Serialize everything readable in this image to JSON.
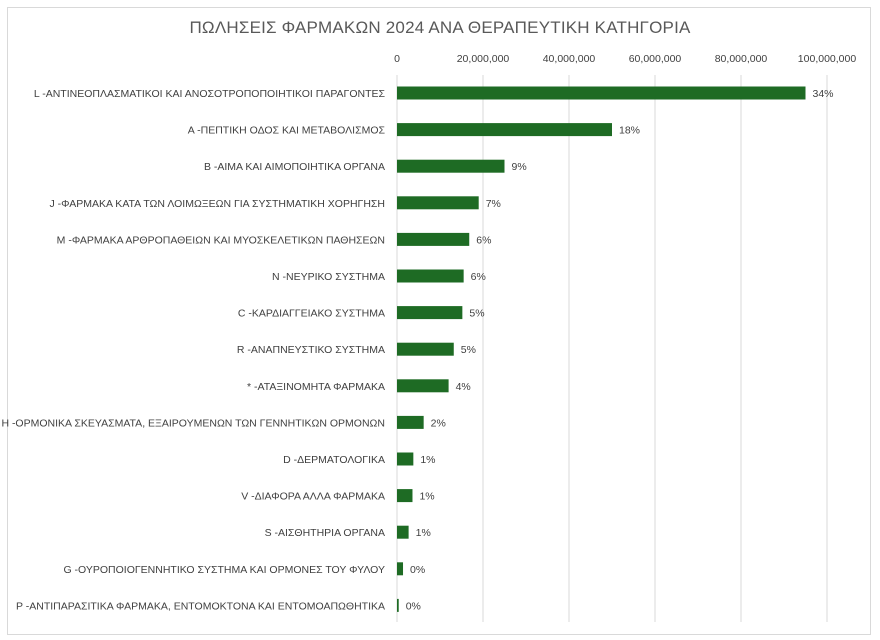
{
  "chart_data": {
    "type": "bar",
    "orientation": "horizontal",
    "title": "ΠΩΛΗΣΕΙΣ ΦΑΡΜΑΚΩΝ 2024 ΑΝΑ ΘΕΡΑΠΕΥΤΙΚΗ ΚΑΤΗΓΟΡΙΑ",
    "xlabel": "",
    "ylabel": "",
    "xlim": [
      0,
      100000000
    ],
    "x_ticks": [
      0,
      20000000,
      40000000,
      60000000,
      80000000,
      100000000
    ],
    "x_tick_labels": [
      "0",
      "20,000,000",
      "40,000,000",
      "60,000,000",
      "80,000,000",
      "100,000,000"
    ],
    "axis_position": "top",
    "grid": true,
    "bar_color": "#1e6b24",
    "categories": [
      "L -ΑΝΤΙΝΕΟΠΛΑΣΜΑΤΙΚΟΙ ΚΑΙ ΑΝΟΣΟΤΡΟΠΟΠΟΙΗΤΙΚΟΙ ΠΑΡΑΓΟΝΤΕΣ",
      "A -ΠΕΠΤΙΚΗ ΟΔΟΣ ΚΑΙ ΜΕΤΑΒΟΛΙΣΜΟΣ",
      "B -ΑΙΜΑ ΚΑΙ ΑΙΜΟΠΟΙΗΤΙΚΑ ΟΡΓΑΝΑ",
      "J -ΦΑΡΜΑΚΑ ΚΑΤΑ ΤΩΝ ΛΟΙΜΩΞΕΩΝ ΓΙΑ ΣΥΣΤΗΜΑΤΙΚΗ ΧΟΡΗΓΗΣΗ",
      "M -ΦΑΡΜΑΚΑ ΑΡΘΡΟΠΑΘΕΙΩΝ ΚΑΙ ΜΥΟΣΚΕΛΕΤΙΚΩΝ ΠΑΘΗΣΕΩΝ",
      "N -ΝΕΥΡΙΚΟ ΣΥΣΤΗΜΑ",
      "C -ΚΑΡΔΙΑΓΓΕΙΑΚΟ ΣΥΣΤΗΜΑ",
      "R -ΑΝΑΠΝΕΥΣΤΙΚΟ ΣΥΣΤΗΜΑ",
      "* -ΑΤΑΞΙΝΟΜΗΤΑ ΦΑΡΜΑΚΑ",
      "H -ΟΡΜΟΝΙΚΑ ΣΚΕΥΑΣΜΑΤΑ, ΕΞΑΙΡΟΥΜΕΝΩΝ ΤΩΝ ΓΕΝΝΗΤΙΚΩΝ ΟΡΜΟΝΩΝ",
      "D -ΔΕΡΜΑΤΟΛΟΓΙΚΑ",
      "V -ΔΙΑΦΟΡΑ ΑΛΛΑ ΦΑΡΜΑΚΑ",
      "S -ΑΙΣΘΗΤΗΡΙΑ ΟΡΓΑΝΑ",
      "G -ΟΥΡΟΠΟΙΟΓΕΝΝΗΤΙΚΟ ΣΥΣΤΗΜΑ ΚΑΙ ΟΡΜΟΝΕΣ ΤΟΥ ΦΥΛΟΥ",
      "P -ΑΝΤΙΠΑΡΑΣΙΤΙΚΑ ΦΑΡΜΑΚΑ, ΕΝΤΟΜΟΚΤΟΝΑ ΚΑΙ ΕΝΤΟΜΟΑΠΩΘΗΤΙΚΑ"
    ],
    "values": [
      95000000,
      50000000,
      25000000,
      19000000,
      16800000,
      15500000,
      15200000,
      13200000,
      12000000,
      6200000,
      3800000,
      3600000,
      2700000,
      1400000,
      400000
    ],
    "data_labels": [
      "34%",
      "18%",
      "9%",
      "7%",
      "6%",
      "6%",
      "5%",
      "5%",
      "4%",
      "2%",
      "1%",
      "1%",
      "1%",
      "0%",
      "0%"
    ]
  }
}
